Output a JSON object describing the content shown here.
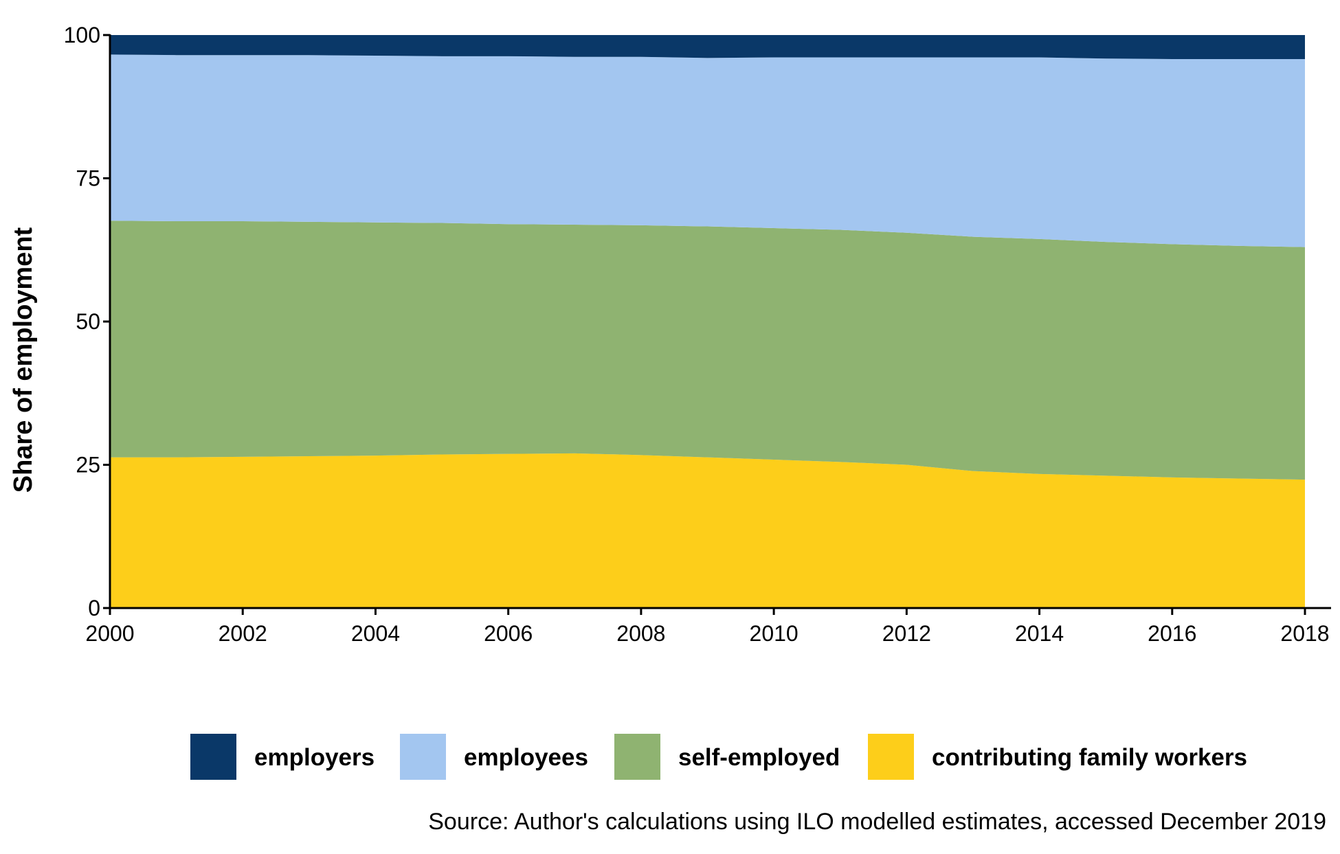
{
  "chart_data": {
    "type": "area",
    "stacked": true,
    "title": "",
    "xlabel": "",
    "ylabel": "Share of employment",
    "xlim": [
      2000,
      2018
    ],
    "ylim": [
      0,
      100
    ],
    "x": [
      2000,
      2001,
      2002,
      2003,
      2004,
      2005,
      2006,
      2007,
      2008,
      2009,
      2010,
      2011,
      2012,
      2013,
      2014,
      2015,
      2016,
      2017,
      2018
    ],
    "x_ticks": [
      2000,
      2002,
      2004,
      2006,
      2008,
      2010,
      2012,
      2014,
      2016,
      2018
    ],
    "x_tick_labels": [
      "2000",
      "2002",
      "2004",
      "2006",
      "2008",
      "2010",
      "2012",
      "2014",
      "2016",
      "2018"
    ],
    "y_ticks": [
      0,
      25,
      50,
      75,
      100
    ],
    "y_tick_labels": [
      "0",
      "25",
      "50",
      "75",
      "100"
    ],
    "grid": false,
    "legend_position": "bottom",
    "series": [
      {
        "name": "contributing family workers",
        "color": "#FDCE1A",
        "values": [
          26.3,
          26.3,
          26.4,
          26.5,
          26.6,
          26.8,
          26.9,
          27.0,
          26.7,
          26.3,
          25.9,
          25.5,
          25.0,
          23.9,
          23.4,
          23.1,
          22.8,
          22.6,
          22.4
        ]
      },
      {
        "name": "self-employed",
        "color": "#8FB371",
        "values": [
          41.3,
          41.2,
          41.1,
          40.9,
          40.7,
          40.4,
          40.1,
          39.9,
          40.1,
          40.3,
          40.4,
          40.5,
          40.5,
          40.9,
          41.0,
          40.8,
          40.7,
          40.6,
          40.6
        ]
      },
      {
        "name": "employees",
        "color": "#A3C6F0",
        "values": [
          29.0,
          29.0,
          29.0,
          29.1,
          29.1,
          29.1,
          29.3,
          29.3,
          29.4,
          29.4,
          29.8,
          30.1,
          30.6,
          31.3,
          31.7,
          32.0,
          32.3,
          32.6,
          32.8
        ]
      },
      {
        "name": "employers",
        "color": "#0A3868",
        "values": [
          3.4,
          3.5,
          3.5,
          3.5,
          3.6,
          3.7,
          3.7,
          3.8,
          3.8,
          4.0,
          3.9,
          3.9,
          3.9,
          3.9,
          3.9,
          4.1,
          4.2,
          4.2,
          4.2
        ]
      }
    ],
    "legend_order": [
      "employers",
      "employees",
      "self-employed",
      "contributing family workers"
    ],
    "annotations": []
  },
  "caption": {
    "source": "Source: Author's calculations using ILO modelled estimates, accessed December 2019"
  }
}
